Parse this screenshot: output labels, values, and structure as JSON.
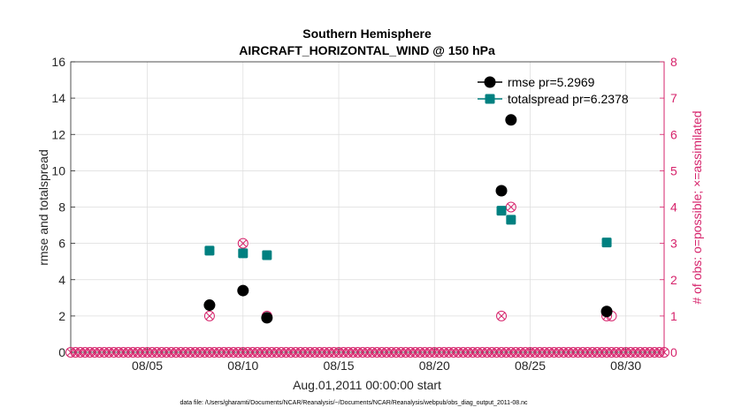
{
  "chart_data": {
    "type": "scatter",
    "title": [
      "Southern Hemisphere",
      "AIRCRAFT_HORIZONTAL_WIND @ 150 hPa"
    ],
    "xlabel": "Aug.01,2011 00:00:00 start",
    "ylabel": "rmse and totalspread",
    "y2label": "# of obs: o=possible; ×=assimilated",
    "footnote": "data file: /Users/gharamti/Documents/NCAR/Reanalysis/~/Documents/NCAR/Reanalysis/webpub/obs_diag_output_2011-08.nc",
    "xlim": [
      1.0,
      32.0
    ],
    "ylim": [
      0,
      16
    ],
    "y2lim": [
      0,
      8
    ],
    "xticks": [
      5,
      10,
      15,
      20,
      25,
      30
    ],
    "xtick_labels": [
      "08/05",
      "08/10",
      "08/15",
      "08/20",
      "08/25",
      "08/30"
    ],
    "yticks": [
      0,
      2,
      4,
      6,
      8,
      10,
      12,
      14,
      16
    ],
    "y2ticks": [
      0,
      1,
      2,
      3,
      4,
      5,
      6,
      7,
      8
    ],
    "legend": {
      "location": "top-right",
      "entries": [
        "rmse pr=5.2969",
        "totalspread pr=6.2378"
      ]
    },
    "series": [
      {
        "name": "rmse",
        "color": "#000000",
        "marker": "circle",
        "points": [
          [
            8.25,
            2.6
          ],
          [
            10.0,
            3.4
          ],
          [
            11.25,
            1.9
          ],
          [
            23.5,
            8.9
          ],
          [
            24.0,
            12.8
          ],
          [
            29.0,
            2.25
          ]
        ]
      },
      {
        "name": "totalspread",
        "color": "#008080",
        "marker": "square",
        "points": [
          [
            8.25,
            5.6
          ],
          [
            10.0,
            5.45
          ],
          [
            11.25,
            5.35
          ],
          [
            23.5,
            7.8
          ],
          [
            24.0,
            7.3
          ],
          [
            29.0,
            6.05
          ]
        ]
      }
    ],
    "obs_possible": {
      "color": "#d6236b",
      "marker": "o",
      "points": [
        [
          8.25,
          1
        ],
        [
          10.0,
          3
        ],
        [
          11.25,
          1
        ],
        [
          23.5,
          1
        ],
        [
          24.0,
          4
        ],
        [
          29.0,
          1
        ],
        [
          29.25,
          1
        ]
      ]
    },
    "obs_assimilated": {
      "color": "#d6236b",
      "marker": "x",
      "points": [
        [
          8.25,
          1
        ],
        [
          10.0,
          3
        ],
        [
          11.25,
          1
        ],
        [
          23.5,
          1
        ],
        [
          24.0,
          4
        ],
        [
          29.0,
          1
        ]
      ]
    },
    "obs_zero_times": {
      "start": 1.0,
      "end": 32.0,
      "step": 0.25
    },
    "colors": {
      "axis_left": "#262626",
      "axis_right": "#d6236b",
      "grid": "#dcdcdc"
    }
  }
}
